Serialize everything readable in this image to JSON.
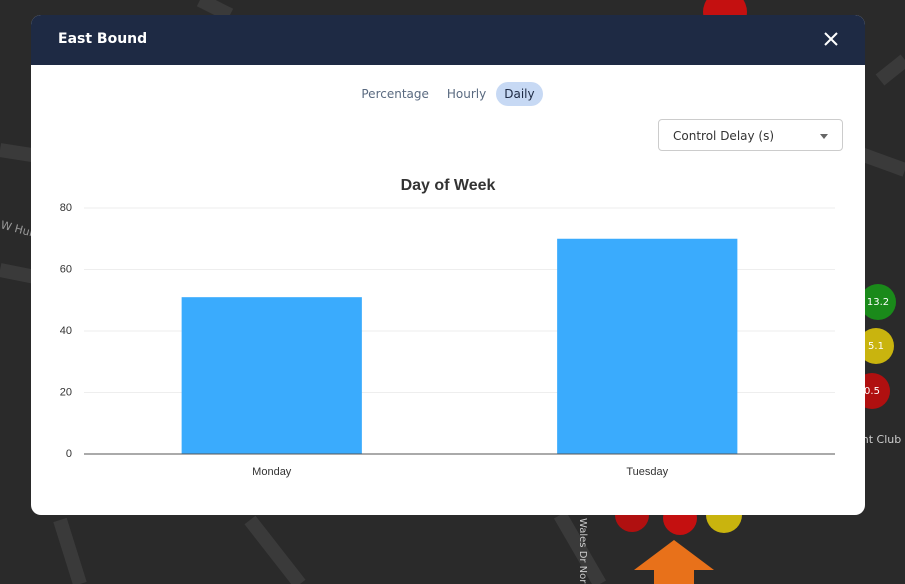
{
  "map": {
    "labels": [
      "W Hur",
      "13.2",
      "5.1",
      "0.5",
      "ant Club",
      "Wales Dr Nor"
    ]
  },
  "modal": {
    "title": "East Bound",
    "tabs": [
      "Percentage",
      "Hourly",
      "Daily"
    ],
    "active_tab": "Daily",
    "dropdown": "Control Delay (s)"
  },
  "chart_data": {
    "type": "bar",
    "title": "Day of Week",
    "categories": [
      "Monday",
      "Tuesday"
    ],
    "values": [
      51,
      70
    ],
    "color": "#3aabfd",
    "ylim": [
      0,
      80
    ],
    "yticks": [
      0,
      20,
      40,
      60,
      80
    ],
    "grid": true
  }
}
